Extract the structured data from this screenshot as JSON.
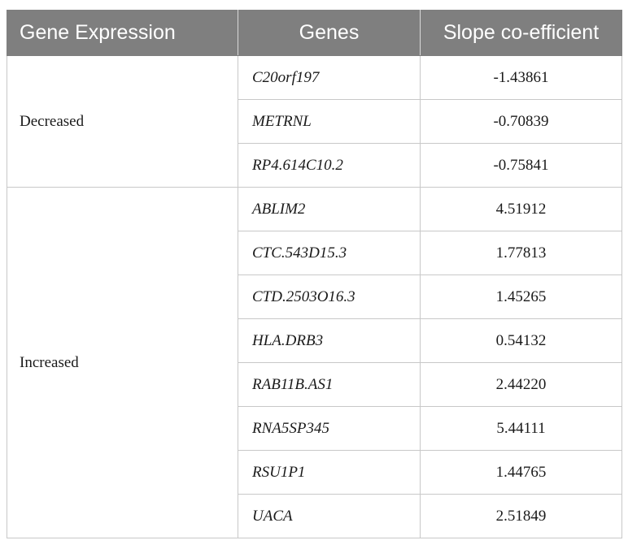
{
  "table": {
    "headers": [
      "Gene Expression",
      "Genes",
      "Slope co-efficient"
    ],
    "groups": [
      {
        "label": "Decreased",
        "rows": [
          {
            "gene": "C20orf197",
            "slope": "-1.43861"
          },
          {
            "gene": "METRNL",
            "slope": "-0.70839"
          },
          {
            "gene": "RP4.614C10.2",
            "slope": "-0.75841"
          }
        ]
      },
      {
        "label": "Increased",
        "rows": [
          {
            "gene": "ABLIM2",
            "slope": "4.51912"
          },
          {
            "gene": "CTC.543D15.3",
            "slope": "1.77813"
          },
          {
            "gene": "CTD.2503O16.3",
            "slope": "1.45265"
          },
          {
            "gene": "HLA.DRB3",
            "slope": "0.54132"
          },
          {
            "gene": "RAB11B.AS1",
            "slope": "2.44220"
          },
          {
            "gene": "RNA5SP345",
            "slope": "5.44111"
          },
          {
            "gene": "RSU1P1",
            "slope": "1.44765"
          },
          {
            "gene": "UACA",
            "slope": "2.51849"
          }
        ]
      }
    ]
  }
}
